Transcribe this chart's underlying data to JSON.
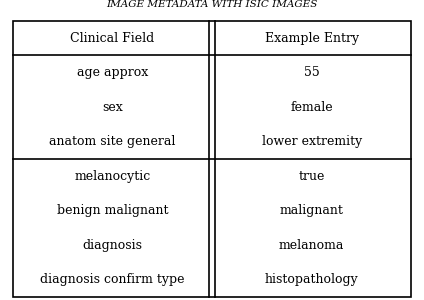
{
  "title": "IMAGE METADATA WITH ISIC IMAGES",
  "col1_header": "Clinical Field",
  "col2_header": "Example Entry",
  "group1_rows": [
    [
      "age approx",
      "55"
    ],
    [
      "sex",
      "female"
    ],
    [
      "anatom site general",
      "lower extremity"
    ]
  ],
  "group2_rows": [
    [
      "melanocytic",
      "true"
    ],
    [
      "benign malignant",
      "malignant"
    ],
    [
      "diagnosis",
      "melanoma"
    ],
    [
      "diagnosis confirm type",
      "histopathology"
    ]
  ],
  "bg_color": "#ffffff",
  "text_color": "#000000",
  "border_color": "#000000",
  "font_size": 9.0,
  "header_font_size": 9.0,
  "title_fontsize": 7.5
}
